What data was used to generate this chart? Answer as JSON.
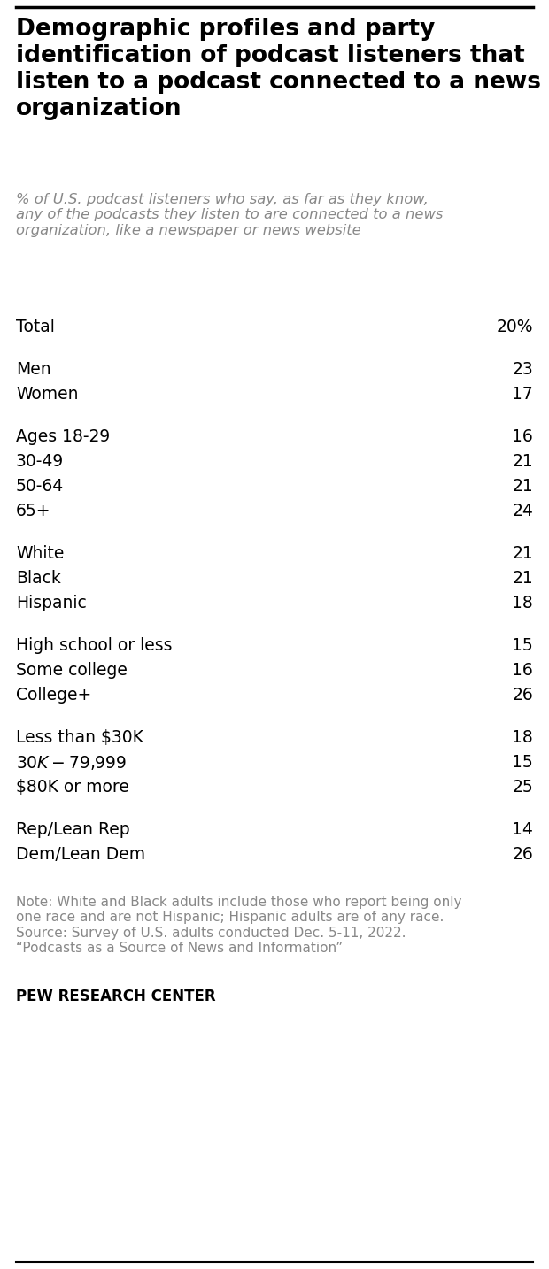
{
  "title": "Demographic profiles and party\nidentification of podcast listeners that\nlisten to a podcast connected to a news\norganization",
  "subtitle": "% of U.S. podcast listeners who say, as far as they know,\nany of the podcasts they listen to are connected to a news\norganization, like a newspaper or news website",
  "rows": [
    {
      "label": "Total",
      "value": "20%",
      "group_gap_before": false
    },
    {
      "label": "Men",
      "value": "23",
      "group_gap_before": true
    },
    {
      "label": "Women",
      "value": "17",
      "group_gap_before": false
    },
    {
      "label": "Ages 18-29",
      "value": "16",
      "group_gap_before": true
    },
    {
      "label": "30-49",
      "value": "21",
      "group_gap_before": false
    },
    {
      "label": "50-64",
      "value": "21",
      "group_gap_before": false
    },
    {
      "label": "65+",
      "value": "24",
      "group_gap_before": false
    },
    {
      "label": "White",
      "value": "21",
      "group_gap_before": true
    },
    {
      "label": "Black",
      "value": "21",
      "group_gap_before": false
    },
    {
      "label": "Hispanic",
      "value": "18",
      "group_gap_before": false
    },
    {
      "label": "High school or less",
      "value": "15",
      "group_gap_before": true
    },
    {
      "label": "Some college",
      "value": "16",
      "group_gap_before": false
    },
    {
      "label": "College+",
      "value": "26",
      "group_gap_before": false
    },
    {
      "label": "Less than $30K",
      "value": "18",
      "group_gap_before": true
    },
    {
      "label": "$30K-$79,999",
      "value": "15",
      "group_gap_before": false
    },
    {
      "label": "$80K or more",
      "value": "25",
      "group_gap_before": false
    },
    {
      "label": "Rep/Lean Rep",
      "value": "14",
      "group_gap_before": true
    },
    {
      "label": "Dem/Lean Dem",
      "value": "26",
      "group_gap_before": false
    }
  ],
  "note": "Note: White and Black adults include those who report being only\none race and are not Hispanic; Hispanic adults are of any race.\nSource: Survey of U.S. adults conducted Dec. 5-11, 2022.\n“Podcasts as a Source of News and Information”",
  "footer": "PEW RESEARCH CENTER",
  "top_line_color": "#000000",
  "bottom_line_color": "#000000",
  "background_color": "#ffffff",
  "title_fontsize": 19,
  "subtitle_fontsize": 11.8,
  "row_fontsize": 13.5,
  "note_fontsize": 11,
  "footer_fontsize": 12,
  "label_color": "#000000",
  "value_color": "#000000",
  "subtitle_color": "#888888",
  "note_color": "#888888"
}
